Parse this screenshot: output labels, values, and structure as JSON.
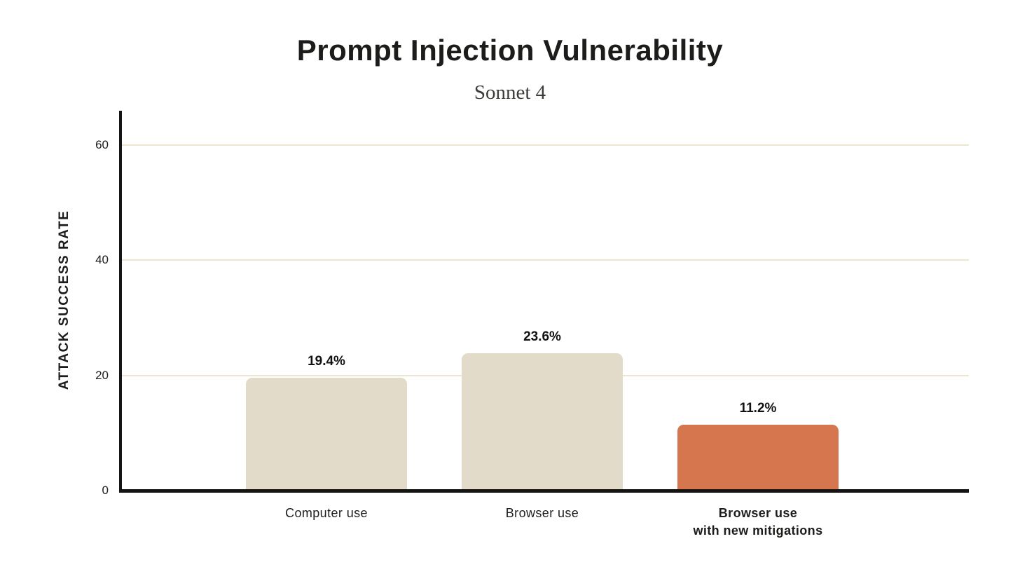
{
  "chart_data": {
    "type": "bar",
    "title": "Prompt Injection Vulnerability",
    "subtitle": "Sonnet 4",
    "ylabel": "ATTACK SUCCESS RATE",
    "xlabel": "",
    "categories": [
      "Computer use",
      "Browser use",
      "Browser use\nwith new mitigations"
    ],
    "category_bold": [
      false,
      false,
      true
    ],
    "values": [
      19.4,
      23.6,
      11.2
    ],
    "value_labels": [
      "19.4%",
      "23.6%",
      "11.2%"
    ],
    "bar_colors": [
      "#e2dbc9",
      "#e2dbc9",
      "#d5764f"
    ],
    "yticks": [
      0,
      20,
      40,
      60
    ],
    "ytick_labels": [
      "0",
      "20",
      "40",
      "60"
    ],
    "ylim": [
      0,
      66
    ],
    "grid": true,
    "legend": "none",
    "colors": {
      "background": "#ffffff",
      "axis": "#141412",
      "gridline": "#ebe5d2",
      "title_text": "#1c1c1a",
      "subtitle_text": "#3e3c38",
      "bar_beige": "#e2dbc9",
      "bar_orange": "#d5764f"
    }
  }
}
